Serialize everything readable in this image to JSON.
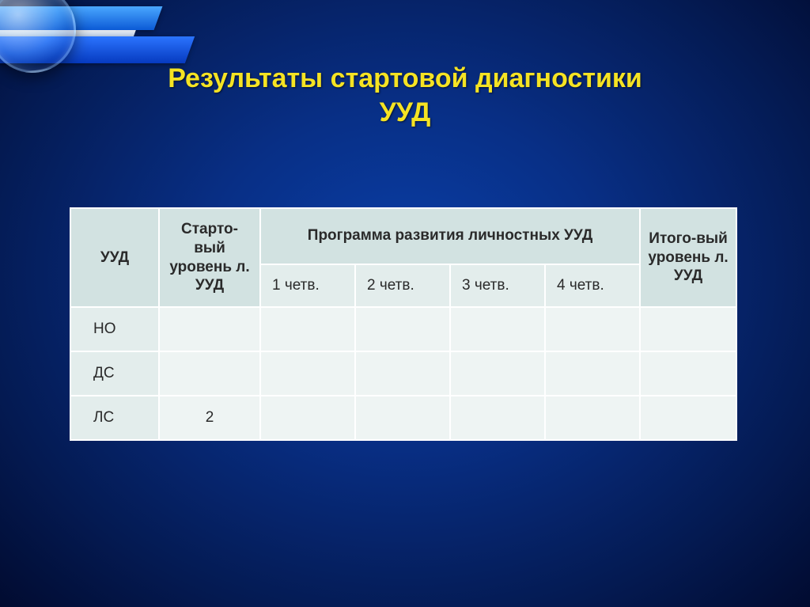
{
  "title_line1": "Результаты стартовой диагностики",
  "title_line2": "УУД",
  "table": {
    "type": "table",
    "header_bg": "#d2e2e1",
    "subheader_bg": "#e3edec",
    "cell_bg": "#eef4f3",
    "border_color": "#ffffff",
    "columns": {
      "uud": "УУД",
      "start_level": "Старто-вый уровень л. УУД",
      "program_group": "Программа развития личностных УУД",
      "quarters": [
        "1 четв.",
        "2 четв.",
        "3 четв.",
        "4 четв."
      ],
      "final_level": "Итого-вый уровень л. УУД"
    },
    "rows": [
      {
        "label": "НО",
        "start": "",
        "q1": "",
        "q2": "",
        "q3": "",
        "q4": "",
        "final": ""
      },
      {
        "label": "ДС",
        "start": "",
        "q1": "",
        "q2": "",
        "q3": "",
        "q4": "",
        "final": ""
      },
      {
        "label": "ЛС",
        "start": "2",
        "q1": "",
        "q2": "",
        "q3": "",
        "q4": "",
        "final": ""
      }
    ]
  },
  "colors": {
    "title_color": "#f5e323",
    "background_center": "#0a3fa8",
    "background_edge": "#010b30"
  }
}
